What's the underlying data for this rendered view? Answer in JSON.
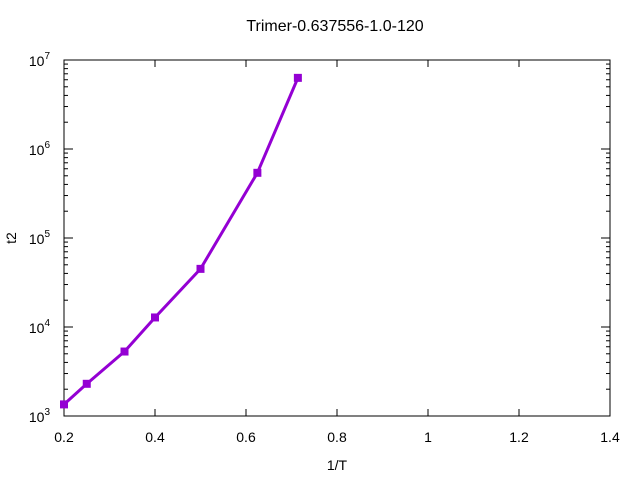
{
  "chart_data": {
    "type": "line",
    "title": "Trimer-0.637556-1.0-120",
    "xlabel": "1/T",
    "ylabel": "t2",
    "xlim": [
      0.2,
      1.4
    ],
    "ylim": [
      1000,
      10000000
    ],
    "yscale": "log",
    "grid": false,
    "legend": "none",
    "x_ticks": [
      "0.2",
      "0.4",
      "0.6",
      "0.8",
      "1",
      "1.2",
      "1.4"
    ],
    "y_ticks": [
      {
        "base": "10",
        "exp": "3"
      },
      {
        "base": "10",
        "exp": "4"
      },
      {
        "base": "10",
        "exp": "5"
      },
      {
        "base": "10",
        "exp": "6"
      },
      {
        "base": "10",
        "exp": "7"
      }
    ],
    "series": [
      {
        "color": "#9400d3",
        "x": [
          0.2,
          0.25,
          0.333,
          0.4,
          0.5,
          0.625,
          0.714
        ],
        "y": [
          1350,
          2300,
          5300,
          12800,
          45000,
          540000,
          6300000
        ]
      }
    ]
  }
}
